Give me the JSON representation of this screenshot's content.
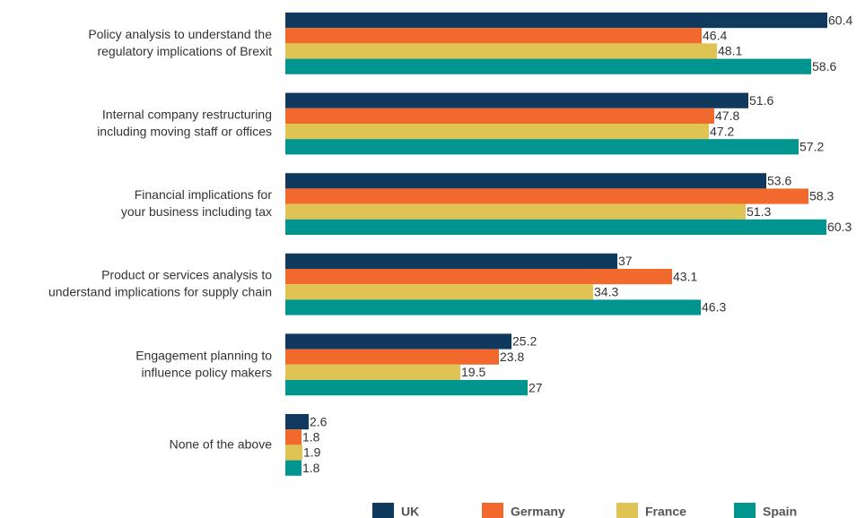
{
  "chart_data": {
    "type": "bar",
    "orientation": "horizontal",
    "categories": [
      "Policy analysis to understand the\nregulatory implications of Brexit",
      "Internal company restructuring\nincluding moving staff or offices",
      "Financial implications for\nyour business including tax",
      "Product or services analysis to\nunderstand implications for supply chain",
      "Engagement planning to\ninfluence policy makers",
      "None of the above"
    ],
    "series": [
      {
        "name": "UK",
        "color": "#0f3a5e",
        "values": [
          60.4,
          51.6,
          53.6,
          37,
          25.2,
          2.6
        ]
      },
      {
        "name": "Germany",
        "color": "#f2692d",
        "values": [
          46.4,
          47.8,
          58.3,
          43.1,
          23.8,
          1.8
        ]
      },
      {
        "name": "France",
        "color": "#dfc454",
        "values": [
          48.1,
          47.2,
          51.3,
          34.3,
          19.5,
          1.9
        ]
      },
      {
        "name": "Spain",
        "color": "#00958f",
        "values": [
          58.6,
          57.2,
          60.3,
          46.3,
          27,
          1.8
        ]
      }
    ],
    "xlim": [
      0,
      64
    ]
  }
}
